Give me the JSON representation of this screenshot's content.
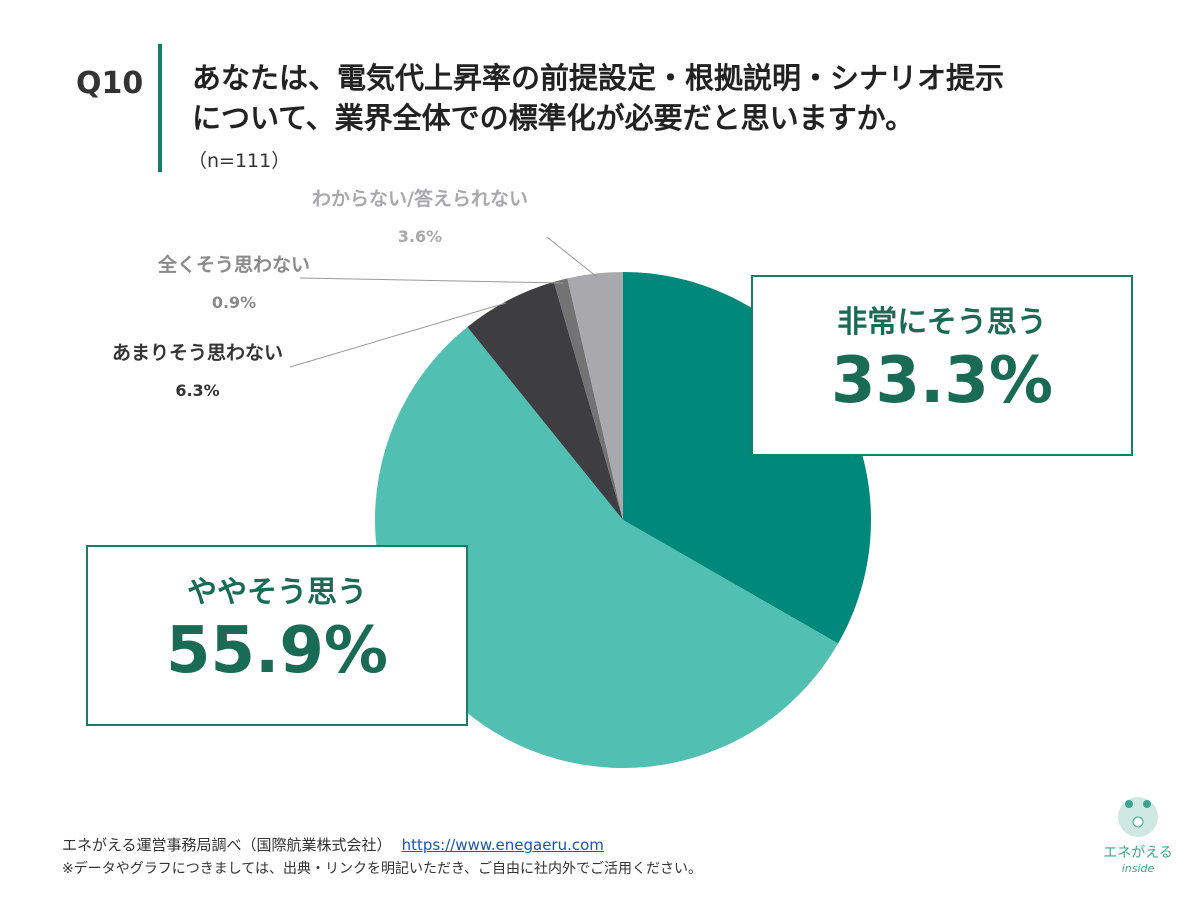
{
  "question": {
    "number": "Q10",
    "line1": "あなたは、電気代上昇率の前提設定・根拠説明・シナリオ提示",
    "line2": "について、業界全体での標準化が必要だと思いますか。",
    "sample": "（n=111）"
  },
  "chart_data": {
    "type": "pie",
    "start": "top",
    "direction": "clockwise",
    "slices": [
      {
        "label": "非常にそう思う",
        "value": 33.3,
        "display": "33.3%",
        "color": "#00897a"
      },
      {
        "label": "ややそう思う",
        "value": 55.9,
        "display": "55.9%",
        "color": "#52bfb3"
      },
      {
        "label": "あまりそう思わない",
        "value": 6.3,
        "display": "6.3%",
        "color": "#3e3e42"
      },
      {
        "label": "全くそう思わない",
        "value": 0.9,
        "display": "0.9%",
        "color": "#737373"
      },
      {
        "label": "わからない/答えられない",
        "value": 3.6,
        "display": "3.6%",
        "color": "#a9a9ad"
      }
    ]
  },
  "footer": {
    "source": "エネがえる運営事務局調べ（国際航業株式会社）",
    "link": "https://www.enegaeru.com",
    "note": "※データやグラフにつきましては、出典・リンクを明記いただき、ご自由に社内外でご活用ください。"
  },
  "logo": {
    "text": "エネがえる",
    "sub": "inside"
  }
}
